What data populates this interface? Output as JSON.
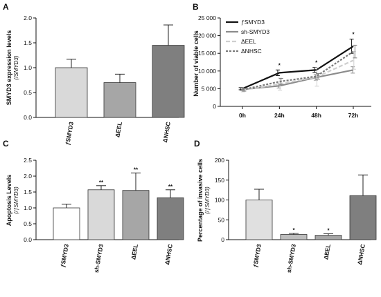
{
  "chart_data": [
    {
      "panel": "A",
      "type": "bar",
      "ylabel": "SMYD3 expression levels",
      "ysub": "(/SMYD3)",
      "categories": [
        "ƒSMYD3",
        "ΔEEL",
        "ΔNHSC"
      ],
      "values": [
        1.0,
        0.7,
        1.45
      ],
      "errors": [
        0.17,
        0.17,
        0.41
      ],
      "colors": [
        "#d9d9d9",
        "#a6a6a6",
        "#7f7f7f"
      ],
      "significance": [
        "",
        "",
        ""
      ],
      "ylim": [
        0,
        2.0
      ],
      "yticks": [
        0.0,
        0.5,
        1.0,
        1.5,
        2.0
      ],
      "ytick_labels": [
        "0.0",
        "0.5",
        "1.0",
        "1.5",
        "2.0"
      ]
    },
    {
      "panel": "B",
      "type": "line",
      "ylabel": "Number of viable cells",
      "categories": [
        "0h",
        "24h",
        "48h",
        "72h"
      ],
      "series": [
        {
          "name": "ƒSMYD3",
          "values": [
            5000,
            9500,
            10300,
            17000
          ],
          "errors": [
            300,
            800,
            700,
            2000
          ],
          "color": "#111111",
          "dash": "",
          "width": 2.2
        },
        {
          "name": "sh-SMYD3",
          "values": [
            4800,
            5800,
            8200,
            10300
          ],
          "errors": [
            300,
            600,
            800,
            900
          ],
          "color": "#8c8c8c",
          "dash": "",
          "width": 2.2
        },
        {
          "name": "ΔEEL",
          "values": [
            4600,
            6300,
            8300,
            13000
          ],
          "errors": [
            500,
            1700,
            2600,
            2500
          ],
          "color": "#cfcfcf",
          "dash": "6,3",
          "width": 2.2
        },
        {
          "name": "ΔNHSC",
          "values": [
            4700,
            7000,
            8500,
            15500
          ],
          "errors": [
            400,
            900,
            800,
            1800
          ],
          "color": "#7a7a7a",
          "dash": "3,2",
          "width": 2.2
        }
      ],
      "annotations": [
        {
          "category": "24h",
          "text": "*"
        },
        {
          "category": "48h",
          "text": "*"
        },
        {
          "category": "72h",
          "text": "*"
        }
      ],
      "ylim": [
        0,
        25000
      ],
      "yticks": [
        0,
        5000,
        10000,
        15000,
        20000,
        25000
      ],
      "ytick_labels": [
        "0",
        "5 000",
        "10 000",
        "15 000",
        "20 000",
        "25 000"
      ],
      "legend": "top-left"
    },
    {
      "panel": "C",
      "type": "bar",
      "ylabel": "Apoptosis Levels",
      "ysub": "(/ƒSMYD3)",
      "categories": [
        "ƒSMYD3",
        "sh-SMYD3",
        "ΔEEL",
        "ΔNHSC"
      ],
      "values": [
        1.0,
        1.57,
        1.55,
        1.32
      ],
      "errors": [
        0.12,
        0.13,
        0.55,
        0.25
      ],
      "colors": [
        "#ffffff",
        "#d9d9d9",
        "#a6a6a6",
        "#7f7f7f"
      ],
      "significance": [
        "",
        "**",
        "**",
        "**"
      ],
      "ylim": [
        0,
        2.5
      ],
      "yticks": [
        0.0,
        0.5,
        1.0,
        1.5,
        2.0,
        2.5
      ],
      "ytick_labels": [
        "0.0",
        "0.5",
        "1.0",
        "1.5",
        "2.0",
        "2.5"
      ]
    },
    {
      "panel": "D",
      "type": "bar",
      "ylabel": "Percentage of invasive cells",
      "ysub": "(/ƒSMYD3)",
      "categories": [
        "ƒSMYD3",
        "sh-SMYD3",
        "ΔEEL",
        "ΔNHSC"
      ],
      "values": [
        100,
        13,
        11,
        111
      ],
      "errors": [
        27,
        3,
        4,
        52
      ],
      "colors": [
        "#e0e0e0",
        "#bdbdbd",
        "#a6a6a6",
        "#7f7f7f"
      ],
      "significance": [
        "",
        "*",
        "*",
        ""
      ],
      "ylim": [
        0,
        200
      ],
      "yticks": [
        0,
        50,
        100,
        150,
        200
      ],
      "ytick_labels": [
        "0",
        "50",
        "100",
        "150",
        "200"
      ]
    }
  ]
}
